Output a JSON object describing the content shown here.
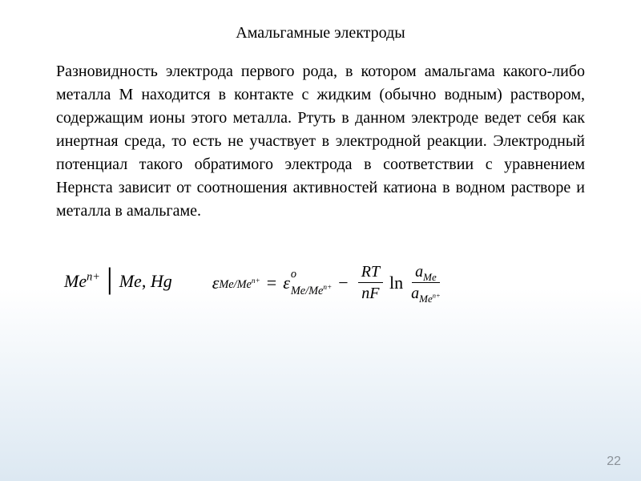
{
  "slide": {
    "title": "Амальгамные электроды",
    "body": "Разновидность электрода первого рода, в котором амальгама какого-либо металла М находится в контакте с жидким (обычно водным) раствором, содержащим ионы этого металла. Ртуть в данном электроде ведет себя как инертная среда, то есть не участвует в электродной реакции. Электродный потенциал такого обратимого электрода в соответствии с уравнением Нернста зависит от соотношения активностей катиона в водном растворе и металла в амальгаме.",
    "page_number": "22"
  },
  "formula": {
    "left_notation": {
      "species": "Me",
      "charge": "n+",
      "phase1": "Me",
      "phase2": "Hg"
    },
    "nernst": {
      "epsilon_symbol": "ε",
      "subscript_species": "Me/Me",
      "subscript_charge": "n+",
      "superscript_standard": "o",
      "minus": "−",
      "R": "R",
      "T": "T",
      "n": "n",
      "F": "F",
      "ln": "ln",
      "activity_symbol": "a",
      "activity_num_sub": "Me",
      "activity_den_sub": "Me",
      "activity_den_charge": "n+"
    }
  },
  "style": {
    "background_top": "#ffffff",
    "background_bottom": "#dce8f2",
    "text_color": "#000000",
    "page_number_color": "#8b9299",
    "title_fontsize": 20,
    "body_fontsize": 20,
    "formula_fontsize": 22,
    "font_family": "Times New Roman"
  }
}
